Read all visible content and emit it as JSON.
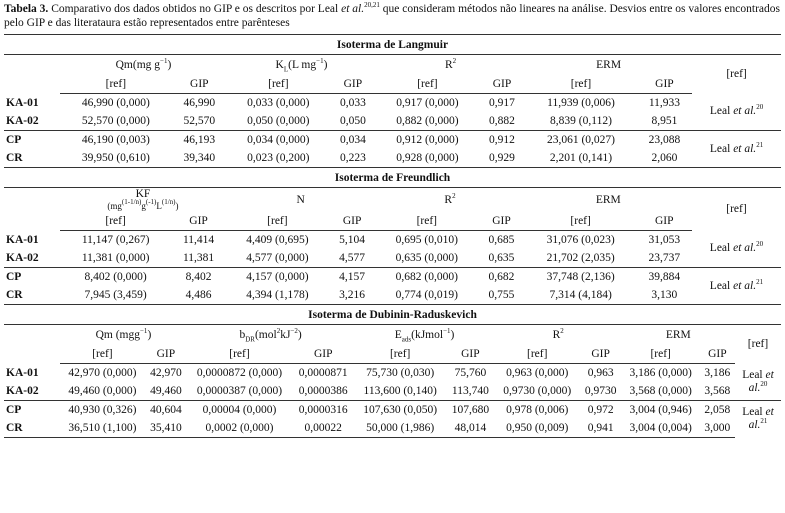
{
  "caption": [
    {
      "t": "Tabela 3.",
      "s": "b"
    },
    {
      "t": " Comparativo dos dados obtidos no GIP e os descritos por Leal "
    },
    {
      "t": "et al.",
      "s": "i"
    },
    {
      "t": "20,21",
      "s": "sup"
    },
    {
      "t": " que consideram métodos não lineares na análise. Desvios entre os valores encontrados pelo GIP e das literataura estão representados entre parênteses"
    }
  ],
  "sections": [
    {
      "title": "Isoterma de Langmuir",
      "ref_header": "[ref]",
      "groups": [
        [
          {
            "t": "Qm(mg g"
          },
          {
            "t": "−1",
            "s": "sup"
          },
          {
            "t": ")"
          }
        ],
        [
          {
            "t": "K"
          },
          {
            "t": "L",
            "s": "sub"
          },
          {
            "t": "(L mg"
          },
          {
            "t": "−1",
            "s": "sup"
          },
          {
            "t": ")"
          }
        ],
        [
          {
            "t": "R"
          },
          {
            "t": "2",
            "s": "sup"
          }
        ],
        [
          {
            "t": "ERM"
          }
        ]
      ],
      "sub": [
        "[ref]",
        "GIP",
        "[ref]",
        "GIP",
        "[ref]",
        "GIP",
        "[ref]",
        "GIP"
      ],
      "rows": [
        {
          "id": "KA-01",
          "cells": [
            "46,990 (0,000)",
            "46,990",
            "0,033 (0,000)",
            "0,033",
            "0,917 (0,000)",
            "0,917",
            "11,939 (0,006)",
            "11,933"
          ]
        },
        {
          "id": "KA-02",
          "cells": [
            "52,570 (0,000)",
            "52,570",
            "0,050 (0,000)",
            "0,050",
            "0,882 (0,000)",
            "0,882",
            "8,839 (0,112)",
            "8,951"
          ]
        },
        {
          "id": "CP",
          "cells": [
            "46,190 (0,003)",
            "46,193",
            "0,034 (0,000)",
            "0,034",
            "0,912 (0,000)",
            "0,912",
            "23,061 (0,027)",
            "23,088"
          ]
        },
        {
          "id": "CR",
          "cells": [
            "39,950 (0,610)",
            "39,340",
            "0,023 (0,200)",
            "0,223",
            "0,928 (0,000)",
            "0,929",
            "2,201 (0,141)",
            "2,060"
          ]
        }
      ],
      "refs": [
        [
          {
            "t": "Leal "
          },
          {
            "t": "et al.",
            "s": "i"
          },
          {
            "t": "20",
            "s": "sup"
          }
        ],
        [
          {
            "t": "Leal "
          },
          {
            "t": "et al.",
            "s": "i"
          },
          {
            "t": "21",
            "s": "sup"
          }
        ]
      ]
    },
    {
      "title": "Isoterma de Freundlich",
      "ref_header": "[ref]",
      "groups": [
        [
          {
            "t": "KF"
          },
          {
            "t": "(mg",
            "s": "nl"
          },
          {
            "t": "(1-1/n)",
            "s": "sup"
          },
          {
            "t": "g",
            "s": "sm"
          },
          {
            "t": "(-1)",
            "s": "sup"
          },
          {
            "t": "L",
            "s": "sm"
          },
          {
            "t": "(1/n)",
            "s": "sup"
          },
          {
            "t": ")",
            "s": "sm"
          }
        ],
        [
          {
            "t": "N"
          }
        ],
        [
          {
            "t": "R"
          },
          {
            "t": "2",
            "s": "sup"
          }
        ],
        [
          {
            "t": "ERM"
          }
        ]
      ],
      "sub": [
        "[ref]",
        "GIP",
        "[ref]",
        "GIP",
        "[ref]",
        "GIP",
        "[ref]",
        "GIP"
      ],
      "rows": [
        {
          "id": "KA-01",
          "cells": [
            "11,147 (0,267)",
            "11,414",
            "4,409 (0,695)",
            "5,104",
            "0,695 (0,010)",
            "0,685",
            "31,076 (0,023)",
            "31,053"
          ]
        },
        {
          "id": "KA-02",
          "cells": [
            "11,381 (0,000)",
            "11,381",
            "4,577 (0,000)",
            "4,577",
            "0,635 (0,000)",
            "0,635",
            "21,702 (2,035)",
            "23,737"
          ]
        },
        {
          "id": "CP",
          "cells": [
            "8,402 (0,000)",
            "8,402",
            "4,157 (0,000)",
            "4,157",
            "0,682 (0,000)",
            "0,682",
            "37,748 (2,136)",
            "39,884"
          ]
        },
        {
          "id": "CR",
          "cells": [
            "7,945 (3,459)",
            "4,486",
            "4,394 (1,178)",
            "3,216",
            "0,774 (0,019)",
            "0,755",
            "7,314 (4,184)",
            "3,130"
          ]
        }
      ],
      "refs": [
        [
          {
            "t": "Leal "
          },
          {
            "t": "et al.",
            "s": "i"
          },
          {
            "t": "20",
            "s": "sup"
          }
        ],
        [
          {
            "t": "Leal "
          },
          {
            "t": "et al.",
            "s": "i"
          },
          {
            "t": "21",
            "s": "sup"
          }
        ]
      ]
    },
    {
      "title": "Isoterma de Dubinin-Raduskevich",
      "ref_header": "[ref]",
      "groups": [
        [
          {
            "t": "Qm (mgg"
          },
          {
            "t": "−1",
            "s": "sup"
          },
          {
            "t": ")"
          }
        ],
        [
          {
            "t": "b"
          },
          {
            "t": "DR",
            "s": "sub"
          },
          {
            "t": "(mol"
          },
          {
            "t": "2",
            "s": "sup"
          },
          {
            "t": "kJ"
          },
          {
            "t": "−2",
            "s": "sup"
          },
          {
            "t": ")"
          }
        ],
        [
          {
            "t": "E"
          },
          {
            "t": "ads",
            "s": "sub"
          },
          {
            "t": "(kJmol"
          },
          {
            "t": "−1",
            "s": "sup"
          },
          {
            "t": ")"
          }
        ],
        [
          {
            "t": "R"
          },
          {
            "t": "2",
            "s": "sup"
          }
        ],
        [
          {
            "t": "ERM"
          }
        ]
      ],
      "sub": [
        "[ref]",
        "GIP",
        "[ref]",
        "GIP",
        "[ref]",
        "GIP",
        "[ref]",
        "GIP",
        "[ref]",
        "GIP"
      ],
      "rows": [
        {
          "id": "KA-01",
          "cells": [
            "42,970 (0,000)",
            "42,970",
            "0,0000872 (0,000)",
            "0,0000871",
            "75,730 (0,030)",
            "75,760",
            "0,963 (0,000)",
            "0,963",
            "3,186 (0,000)",
            "3,186"
          ]
        },
        {
          "id": "KA-02",
          "cells": [
            "49,460 (0,000)",
            "49,460",
            "0,0000387 (0,000)",
            "0,0000386",
            "113,600 (0,140)",
            "113,740",
            "0,9730 (0,000)",
            "0,9730",
            "3,568 (0,000)",
            "3,568"
          ]
        },
        {
          "id": "CP",
          "cells": [
            "40,930 (0,326)",
            "40,604",
            "0,00004 (0,000)",
            "0,0000316",
            "107,630 (0,050)",
            "107,680",
            "0,978 (0,006)",
            "0,972",
            "3,004 (0,946)",
            "2,058"
          ]
        },
        {
          "id": "CR",
          "cells": [
            "36,510 (1,100)",
            "35,410",
            "0,0002 (0,000)",
            "0,00022",
            "50,000 (1,986)",
            "48,014",
            "0,950 (0,009)",
            "0,941",
            "3,004 (0,004)",
            "3,000"
          ]
        }
      ],
      "refs": [
        [
          {
            "t": "Leal "
          },
          {
            "t": "et al.",
            "s": "i"
          },
          {
            "t": "20",
            "s": "sup"
          }
        ],
        [
          {
            "t": "Leal "
          },
          {
            "t": "et al.",
            "s": "i"
          },
          {
            "t": "21",
            "s": "sup"
          }
        ]
      ]
    }
  ]
}
